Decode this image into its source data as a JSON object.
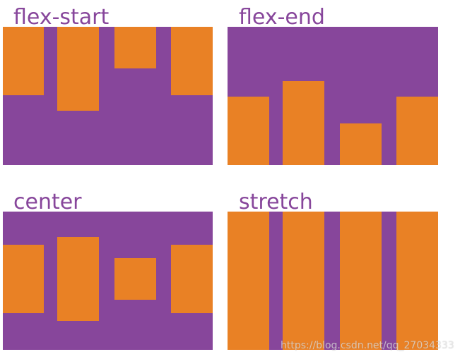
{
  "colors": {
    "container": "#87469B",
    "item": "#E98125",
    "title": "#87469B"
  },
  "panels": [
    {
      "title": "flex-start"
    },
    {
      "title": "flex-end"
    },
    {
      "title": "center"
    },
    {
      "title": "stretch"
    }
  ],
  "watermark": "https://blog.csdn.net/qq_27034333"
}
